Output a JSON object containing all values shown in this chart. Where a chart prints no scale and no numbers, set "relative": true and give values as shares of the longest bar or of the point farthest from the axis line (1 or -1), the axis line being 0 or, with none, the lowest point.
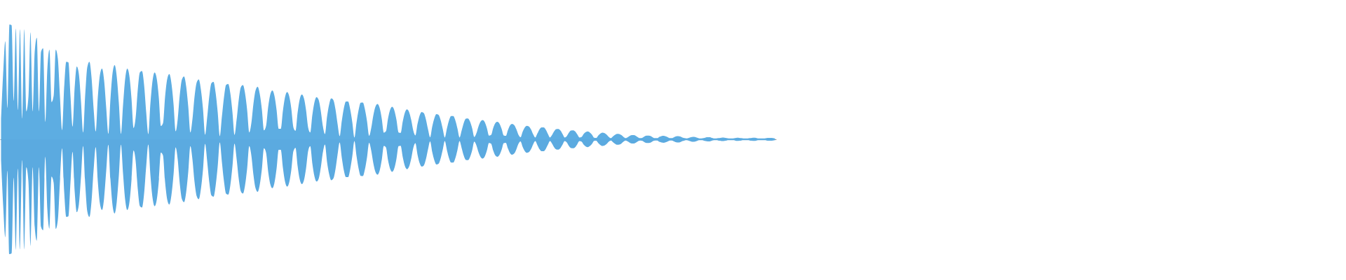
{
  "chart_data": {
    "type": "area",
    "relative": true,
    "categories": [
      null,
      null,
      null,
      null,
      null,
      null,
      null,
      null,
      null,
      null,
      null,
      null,
      null,
      null,
      null,
      null,
      null,
      null,
      null,
      null,
      null,
      null,
      null,
      null,
      null,
      null,
      null,
      null,
      null,
      null,
      null,
      null,
      null,
      null,
      null,
      null,
      null,
      null,
      null,
      null,
      null,
      null,
      null,
      null,
      null,
      null,
      null,
      null,
      null,
      null,
      null,
      null,
      null,
      null,
      null,
      null,
      null,
      null,
      null,
      null,
      null,
      null,
      null,
      null,
      null,
      null,
      null,
      null,
      null,
      null,
      null,
      null,
      null,
      null,
      null,
      null,
      null,
      null,
      null,
      null,
      null,
      null,
      null,
      null,
      null,
      null,
      null,
      null,
      null,
      null,
      null,
      null,
      null,
      null,
      null,
      null,
      null,
      null,
      null,
      null,
      null,
      null,
      null,
      null,
      null,
      null,
      null,
      null,
      null,
      null,
      null,
      null,
      null,
      null,
      null,
      null,
      null,
      null,
      null,
      null,
      null,
      null,
      null,
      null,
      null,
      null,
      null,
      null,
      null,
      null,
      null,
      null,
      null,
      null,
      null,
      null,
      null,
      null,
      null,
      null,
      null,
      null,
      null,
      null,
      null,
      null,
      null,
      null,
      null,
      null,
      null,
      null,
      null,
      null,
      null,
      null,
      null,
      null,
      null,
      null,
      null,
      null,
      null,
      null,
      null,
      null,
      null,
      null,
      null,
      null,
      null,
      null,
      null,
      null,
      null,
      null,
      null,
      null,
      null,
      null,
      null,
      null,
      null,
      null,
      null,
      null,
      null,
      null,
      null,
      null,
      null,
      null,
      null,
      null,
      null,
      null,
      null,
      null,
      null,
      null,
      null,
      null,
      null,
      null,
      null,
      null,
      null,
      null,
      null,
      null,
      null,
      null,
      null,
      null,
      null,
      null,
      null,
      null,
      null,
      null,
      null,
      null,
      null,
      null,
      null,
      null,
      null,
      null,
      null,
      null,
      null,
      null,
      null,
      null,
      null,
      null,
      null,
      null,
      null,
      null,
      null,
      null,
      null,
      null,
      null,
      null,
      null,
      null,
      null,
      null,
      null,
      null,
      null,
      null,
      null,
      null,
      null,
      null,
      null,
      null,
      null,
      null,
      null,
      null,
      null,
      null,
      null,
      null,
      null,
      null,
      null,
      null,
      null,
      null,
      null,
      null,
      null,
      null,
      null,
      null,
      null,
      null,
      null,
      null,
      null,
      null,
      null,
      null,
      null,
      null,
      null,
      null,
      null,
      null,
      null,
      null,
      null,
      null,
      null,
      null,
      null,
      null,
      null,
      null,
      null,
      null,
      null,
      null,
      null,
      null,
      null,
      null,
      null,
      null,
      null,
      null,
      null,
      null,
      null,
      null,
      null,
      null,
      null,
      null,
      null,
      null,
      null,
      null,
      null,
      null,
      null,
      null,
      null,
      null,
      null,
      null,
      null,
      null,
      null,
      null,
      null,
      null,
      null,
      null,
      null,
      null,
      null,
      null,
      null,
      null,
      null,
      null,
      null,
      null,
      null,
      null,
      null,
      null,
      null,
      null,
      null,
      null,
      null,
      null,
      null,
      null,
      null,
      null,
      null
    ],
    "series": [
      {
        "color": "#5dade2",
        "values": [
          0.182,
          0.576,
          0.854,
          0.274,
          1.0,
          0.994,
          0.336,
          0.964,
          0.256,
          0.958,
          0.182,
          0.958,
          0.244,
          0.366,
          0.932,
          0.244,
          0.762,
          0.884,
          0.244,
          0.762,
          0.792,
          0.152,
          0.61,
          0.78,
          0.324,
          0.378,
          0.78,
          0.702,
          0.372,
          0.08,
          0.452,
          0.676,
          0.67,
          0.378,
          0.11,
          0.452,
          0.634,
          0.568,
          0.33,
          0.06,
          0.384,
          0.628,
          0.676,
          0.542,
          0.268,
          0.068,
          0.366,
          0.56,
          0.616,
          0.512,
          0.274,
          0.048,
          0.348,
          0.574,
          0.646,
          0.548,
          0.318,
          0.048,
          0.298,
          0.524,
          0.616,
          0.554,
          0.36,
          0.098,
          0.19,
          0.432,
          0.582,
          0.594,
          0.476,
          0.238,
          0.046,
          0.31,
          0.506,
          0.582,
          0.53,
          0.366,
          0.116,
          0.14,
          0.372,
          0.524,
          0.568,
          0.488,
          0.31,
          0.07,
          0.176,
          0.39,
          0.522,
          0.548,
          0.464,
          0.286,
          0.06,
          0.176,
          0.372,
          0.494,
          0.522,
          0.436,
          0.268,
          0.04,
          0.19,
          0.372,
          0.488,
          0.5,
          0.408,
          0.238,
          0.028,
          0.196,
          0.366,
          0.474,
          0.482,
          0.402,
          0.24,
          0.038,
          0.17,
          0.342,
          0.452,
          0.472,
          0.402,
          0.256,
          0.06,
          0.14,
          0.31,
          0.426,
          0.458,
          0.396,
          0.262,
          0.078,
          0.116,
          0.28,
          0.39,
          0.426,
          0.378,
          0.256,
          0.092,
          0.092,
          0.246,
          0.366,
          0.412,
          0.376,
          0.268,
          0.104,
          0.074,
          0.232,
          0.348,
          0.39,
          0.358,
          0.256,
          0.104,
          0.06,
          0.21,
          0.322,
          0.368,
          0.344,
          0.25,
          0.116,
          0.046,
          0.196,
          0.304,
          0.356,
          0.342,
          0.262,
          0.134,
          0.028,
          0.158,
          0.272,
          0.33,
          0.33,
          0.262,
          0.15,
          0.016,
          0.144,
          0.254,
          0.318,
          0.32,
          0.262,
          0.158,
          0.03,
          0.098,
          0.208,
          0.284,
          0.308,
          0.274,
          0.182,
          0.058,
          0.07,
          0.182,
          0.258,
          0.284,
          0.252,
          0.17,
          0.06,
          0.056,
          0.156,
          0.232,
          0.26,
          0.238,
          0.17,
          0.076,
          0.034,
          0.132,
          0.206,
          0.238,
          0.228,
          0.174,
          0.088,
          0.018,
          0.11,
          0.182,
          0.22,
          0.214,
          0.168,
          0.092,
          0.016,
          0.094,
          0.164,
          0.202,
          0.202,
          0.164,
          0.094,
          0.016,
          0.076,
          0.142,
          0.18,
          0.182,
          0.154,
          0.096,
          0.02,
          0.052,
          0.112,
          0.154,
          0.168,
          0.15,
          0.098,
          0.032,
          0.038,
          0.098,
          0.14,
          0.152,
          0.136,
          0.092,
          0.034,
          0.03,
          0.08,
          0.12,
          0.134,
          0.124,
          0.088,
          0.04,
          0.018,
          0.066,
          0.102,
          0.118,
          0.112,
          0.086,
          0.044,
          0.016,
          0.05,
          0.086,
          0.104,
          0.104,
          0.084,
          0.048,
          0.016,
          0.038,
          0.07,
          0.088,
          0.09,
          0.076,
          0.046,
          0.016,
          0.028,
          0.058,
          0.076,
          0.078,
          0.068,
          0.042,
          0.016,
          0.02,
          0.046,
          0.062,
          0.068,
          0.058,
          0.04,
          0.014,
          0.012,
          0.034,
          0.05,
          0.058,
          0.054,
          0.04,
          0.02,
          0.01,
          0.026,
          0.04,
          0.048,
          0.046,
          0.036,
          0.02,
          0.01,
          0.018,
          0.03,
          0.036,
          0.036,
          0.028,
          0.016,
          0.01,
          0.014,
          0.026,
          0.032,
          0.032,
          0.028,
          0.016,
          0.01,
          0.01,
          0.022,
          0.028,
          0.03,
          0.026,
          0.018,
          0.01,
          0.01,
          0.018,
          0.026,
          0.028,
          0.024,
          0.016,
          0.01,
          0.008,
          0.012,
          0.018,
          0.022,
          0.02,
          0.014,
          0.008,
          0.008,
          0.01,
          0.016,
          0.018,
          0.018,
          0.012,
          0.008,
          0.008,
          0.01,
          0.012,
          0.016,
          0.014,
          0.01,
          0.008,
          0.008,
          0.008,
          0.01,
          0.014,
          0.012,
          0.01,
          0.008,
          0.008,
          0.008,
          0.01,
          0.012,
          0.014,
          0.012,
          0.008,
          0.008,
          0.008,
          0.008,
          0.01,
          0.012,
          0.012,
          0.01,
          0.008
        ]
      },
      {
        "color": "#5baae0",
        "values": [
          -0.182,
          -0.576,
          -0.854,
          -0.274,
          -1.0,
          -0.994,
          -0.336,
          -0.964,
          -0.256,
          -0.958,
          -0.182,
          -0.958,
          -0.244,
          -0.366,
          -0.932,
          -0.244,
          -0.762,
          -0.884,
          -0.244,
          -0.762,
          -0.792,
          -0.152,
          -0.61,
          -0.78,
          -0.324,
          -0.378,
          -0.78,
          -0.702,
          -0.372,
          -0.08,
          -0.452,
          -0.676,
          -0.67,
          -0.378,
          -0.11,
          -0.452,
          -0.634,
          -0.568,
          -0.33,
          -0.06,
          -0.384,
          -0.628,
          -0.676,
          -0.542,
          -0.268,
          -0.068,
          -0.366,
          -0.56,
          -0.616,
          -0.512,
          -0.274,
          -0.048,
          -0.348,
          -0.574,
          -0.646,
          -0.548,
          -0.318,
          -0.048,
          -0.298,
          -0.524,
          -0.616,
          -0.554,
          -0.36,
          -0.098,
          -0.19,
          -0.432,
          -0.582,
          -0.594,
          -0.476,
          -0.238,
          -0.046,
          -0.31,
          -0.506,
          -0.582,
          -0.53,
          -0.366,
          -0.116,
          -0.14,
          -0.372,
          -0.524,
          -0.568,
          -0.488,
          -0.31,
          -0.07,
          -0.176,
          -0.39,
          -0.522,
          -0.548,
          -0.464,
          -0.286,
          -0.06,
          -0.176,
          -0.372,
          -0.494,
          -0.522,
          -0.436,
          -0.268,
          -0.04,
          -0.19,
          -0.372,
          -0.488,
          -0.5,
          -0.408,
          -0.238,
          -0.028,
          -0.196,
          -0.366,
          -0.474,
          -0.482,
          -0.402,
          -0.24,
          -0.038,
          -0.17,
          -0.342,
          -0.452,
          -0.472,
          -0.402,
          -0.256,
          -0.06,
          -0.14,
          -0.31,
          -0.426,
          -0.458,
          -0.396,
          -0.262,
          -0.078,
          -0.116,
          -0.28,
          -0.39,
          -0.426,
          -0.378,
          -0.256,
          -0.092,
          -0.092,
          -0.246,
          -0.366,
          -0.412,
          -0.376,
          -0.268,
          -0.104,
          -0.074,
          -0.232,
          -0.348,
          -0.39,
          -0.358,
          -0.256,
          -0.104,
          -0.06,
          -0.21,
          -0.322,
          -0.368,
          -0.344,
          -0.25,
          -0.116,
          -0.046,
          -0.196,
          -0.304,
          -0.356,
          -0.342,
          -0.262,
          -0.134,
          -0.028,
          -0.158,
          -0.272,
          -0.33,
          -0.33,
          -0.262,
          -0.15,
          -0.016,
          -0.144,
          -0.254,
          -0.318,
          -0.32,
          -0.262,
          -0.158,
          -0.03,
          -0.098,
          -0.208,
          -0.284,
          -0.308,
          -0.274,
          -0.182,
          -0.058,
          -0.07,
          -0.182,
          -0.258,
          -0.284,
          -0.252,
          -0.17,
          -0.06,
          -0.056,
          -0.156,
          -0.232,
          -0.26,
          -0.238,
          -0.17,
          -0.076,
          -0.034,
          -0.132,
          -0.206,
          -0.238,
          -0.228,
          -0.174,
          -0.088,
          -0.018,
          -0.11,
          -0.182,
          -0.22,
          -0.214,
          -0.168,
          -0.092,
          -0.016,
          -0.094,
          -0.164,
          -0.202,
          -0.202,
          -0.164,
          -0.094,
          -0.016,
          -0.076,
          -0.142,
          -0.18,
          -0.182,
          -0.154,
          -0.096,
          -0.02,
          -0.052,
          -0.112,
          -0.154,
          -0.168,
          -0.15,
          -0.098,
          -0.032,
          -0.038,
          -0.098,
          -0.14,
          -0.152,
          -0.136,
          -0.092,
          -0.034,
          -0.03,
          -0.08,
          -0.12,
          -0.134,
          -0.124,
          -0.088,
          -0.04,
          -0.018,
          -0.066,
          -0.102,
          -0.118,
          -0.112,
          -0.086,
          -0.044,
          -0.016,
          -0.05,
          -0.086,
          -0.104,
          -0.104,
          -0.084,
          -0.048,
          -0.016,
          -0.038,
          -0.07,
          -0.088,
          -0.09,
          -0.076,
          -0.046,
          -0.016,
          -0.028,
          -0.058,
          -0.076,
          -0.078,
          -0.068,
          -0.042,
          -0.016,
          -0.02,
          -0.046,
          -0.062,
          -0.068,
          -0.058,
          -0.04,
          -0.014,
          -0.012,
          -0.034,
          -0.05,
          -0.058,
          -0.054,
          -0.04,
          -0.02,
          -0.01,
          -0.026,
          -0.04,
          -0.048,
          -0.046,
          -0.036,
          -0.02,
          -0.01,
          -0.018,
          -0.03,
          -0.036,
          -0.036,
          -0.028,
          -0.016,
          -0.01,
          -0.014,
          -0.026,
          -0.032,
          -0.032,
          -0.028,
          -0.016,
          -0.01,
          -0.01,
          -0.022,
          -0.028,
          -0.03,
          -0.026,
          -0.018,
          -0.01,
          -0.01,
          -0.018,
          -0.026,
          -0.028,
          -0.024,
          -0.016,
          -0.01,
          -0.008,
          -0.012,
          -0.018,
          -0.022,
          -0.02,
          -0.014,
          -0.008,
          -0.008,
          -0.01,
          -0.016,
          -0.018,
          -0.018,
          -0.012,
          -0.008,
          -0.008,
          -0.01,
          -0.012,
          -0.016,
          -0.014,
          -0.01,
          -0.008,
          -0.008,
          -0.008,
          -0.01,
          -0.014,
          -0.012,
          -0.01,
          -0.008,
          -0.008,
          -0.008,
          -0.01,
          -0.012,
          -0.014,
          -0.012,
          -0.008,
          -0.008,
          -0.008,
          -0.008,
          -0.01,
          -0.012,
          -0.012,
          -0.01,
          -0.008
        ]
      }
    ]
  }
}
